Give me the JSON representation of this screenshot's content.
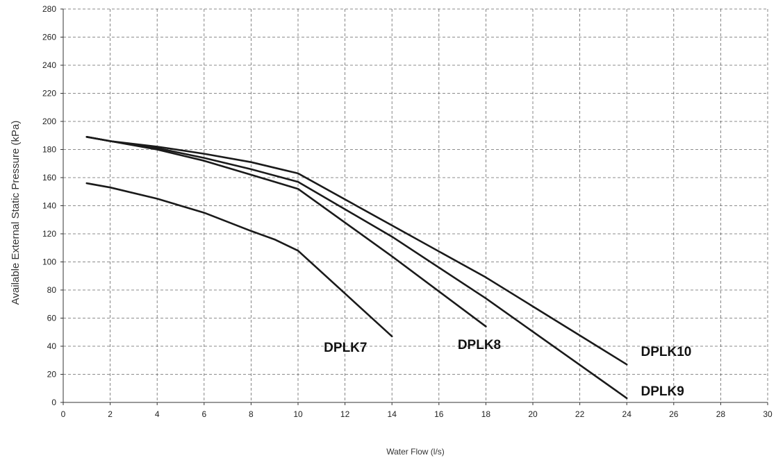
{
  "chart_data": {
    "type": "line",
    "title": "",
    "xlabel": "Water Flow (l/s)",
    "ylabel": "Available External Static Pressure (kPa)",
    "xlim": [
      0,
      30
    ],
    "ylim": [
      0,
      280
    ],
    "x_ticks": [
      0,
      2,
      4,
      6,
      8,
      10,
      12,
      14,
      16,
      18,
      20,
      22,
      24,
      26,
      28,
      30
    ],
    "y_ticks": [
      0,
      20,
      40,
      60,
      80,
      100,
      120,
      140,
      160,
      180,
      200,
      220,
      240,
      260,
      280
    ],
    "grid": true,
    "legend": "none",
    "series": [
      {
        "name": "DPLK7",
        "x": [
          1,
          2,
          4,
          6,
          8,
          9,
          10,
          14
        ],
        "y": [
          156,
          153,
          145,
          135,
          122,
          116,
          108,
          47
        ]
      },
      {
        "name": "DPLK8",
        "x": [
          1,
          2,
          4,
          6,
          8,
          10,
          14,
          18
        ],
        "y": [
          189,
          186,
          180,
          172,
          162,
          152,
          104,
          54
        ]
      },
      {
        "name": "DPLK9",
        "x": [
          1,
          2,
          4,
          6,
          8,
          10,
          14,
          18,
          24
        ],
        "y": [
          189,
          186,
          181,
          174,
          166,
          157,
          118,
          74,
          3
        ]
      },
      {
        "name": "DPLK10",
        "x": [
          1,
          2,
          4,
          6,
          8,
          9,
          10,
          14,
          18,
          24
        ],
        "y": [
          189,
          186,
          182,
          177,
          171,
          167,
          163,
          126,
          89,
          27
        ]
      }
    ],
    "series_label_positions": {
      "DPLK7": [
        11.1,
        36
      ],
      "DPLK8": [
        16.8,
        38
      ],
      "DPLK9": [
        24.6,
        5
      ],
      "DPLK10": [
        24.6,
        33
      ]
    }
  }
}
